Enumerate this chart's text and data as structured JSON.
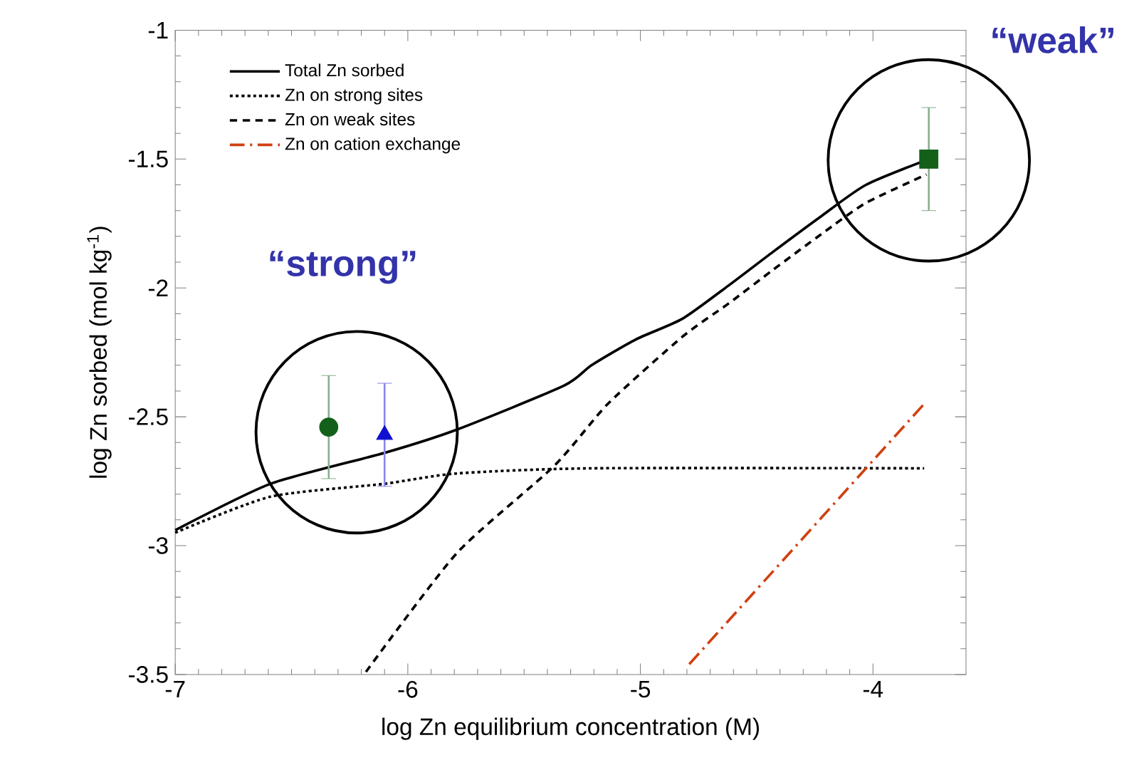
{
  "chart_data": {
    "type": "line",
    "xlabel": "log Zn equilibrium concentration (M)",
    "ylabel": "log Zn sorbed (mol kg$^{-1}$)",
    "xlim": [
      -7,
      -3.6
    ],
    "ylim": [
      -3.5,
      -1
    ],
    "xticks": [
      -7,
      -6,
      -5,
      -4
    ],
    "yticks": [
      -3.5,
      -3,
      -2.5,
      -2,
      -1.5,
      -1
    ],
    "legend": "top left",
    "grid": false,
    "annotations": [
      "“strong”",
      "“weak”"
    ],
    "series": [
      {
        "name": "Total Zn sorbed",
        "line_style": "solid",
        "color": "#000000",
        "x": [
          -7,
          -6.59,
          -6.1,
          -5.79,
          -5.33,
          -5.21,
          -5.02,
          -4.82,
          -4.62,
          -4.43,
          -4.22,
          -4.03,
          -3.76
        ],
        "values": [
          -2.94,
          -2.76,
          -2.64,
          -2.55,
          -2.38,
          -2.3,
          -2.2,
          -2.12,
          -1.99,
          -1.86,
          -1.72,
          -1.6,
          -1.5
        ]
      },
      {
        "name": "Zn on strong sites",
        "line_style": "dotted",
        "color": "#000000",
        "x": [
          -7,
          -6.59,
          -6.1,
          -5.79,
          -5.21,
          -3.78
        ],
        "values": [
          -2.95,
          -2.81,
          -2.76,
          -2.72,
          -2.7,
          -2.7
        ]
      },
      {
        "name": "Zn on weak sites",
        "line_style": "dashed",
        "color": "#000000",
        "x": [
          -6.18,
          -5.79,
          -5.37,
          -5.14,
          -4.82,
          -4.62,
          -4.43,
          -4.22,
          -4.03,
          -3.77
        ],
        "values": [
          -3.49,
          -3.03,
          -2.69,
          -2.45,
          -2.19,
          -2.06,
          -1.93,
          -1.79,
          -1.67,
          -1.56
        ]
      },
      {
        "name": "Zn on cation exchange",
        "line_style": "dashdot",
        "color": "#d04010",
        "x": [
          -4.79,
          -3.78
        ],
        "values": [
          -3.46,
          -2.45
        ]
      },
      {
        "type": "scatter",
        "marker": "circle",
        "color": "#12601a",
        "x": [
          -6.34
        ],
        "values": [
          -2.54
        ],
        "errors": [
          0.2
        ]
      },
      {
        "type": "scatter",
        "marker": "triangle",
        "color": "#1010d0",
        "x": [
          -6.1
        ],
        "values": [
          -2.57
        ],
        "errors": [
          0.2
        ]
      },
      {
        "type": "scatter",
        "marker": "square",
        "color": "#12601a",
        "x": [
          -3.76
        ],
        "values": [
          -1.5
        ],
        "errors": [
          0.2
        ]
      }
    ]
  }
}
